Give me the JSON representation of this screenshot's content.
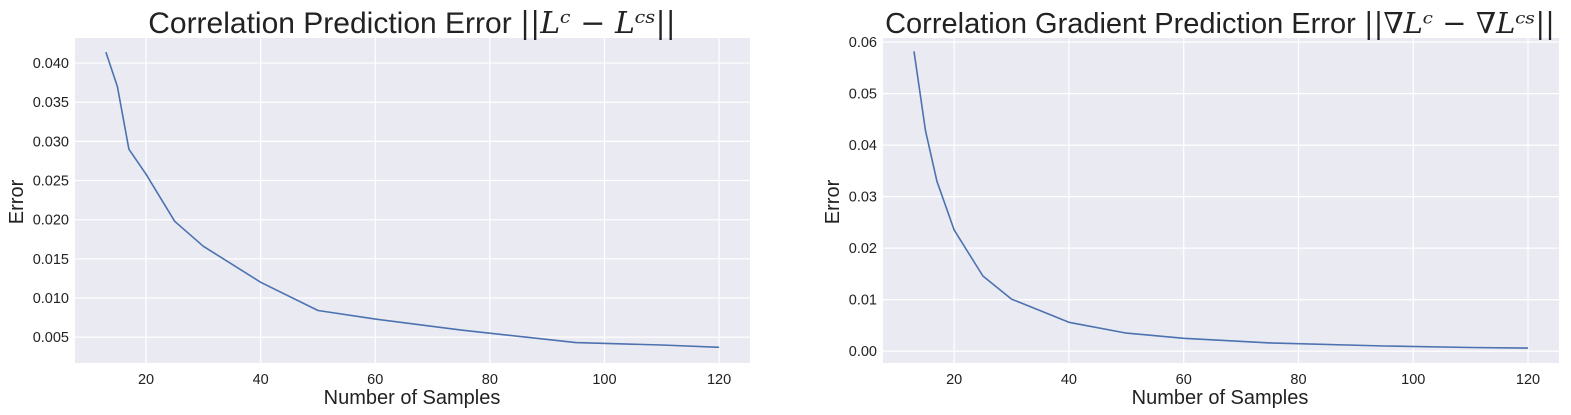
{
  "colors": {
    "background": "#eaeaf2",
    "grid": "#ffffff",
    "series": "#4c72b0"
  },
  "chart_data": [
    {
      "type": "line",
      "title": "Correlation Prediction Error ",
      "title_math": "||Lᶜ − Lᶜˢ||",
      "xlabel": "Number of Samples",
      "ylabel": "Error",
      "xlim": [
        7.6,
        125.4
      ],
      "ylim": [
        0.0017,
        0.0432
      ],
      "xticks": [
        20,
        40,
        60,
        80,
        100,
        120
      ],
      "xtick_labels": [
        "20",
        "40",
        "60",
        "80",
        "100",
        "120"
      ],
      "yticks": [
        0.005,
        0.01,
        0.015,
        0.02,
        0.025,
        0.03,
        0.035,
        0.04
      ],
      "ytick_labels": [
        "0.005",
        "0.010",
        "0.015",
        "0.020",
        "0.025",
        "0.030",
        "0.035",
        "0.040"
      ],
      "grid": true,
      "legend": false,
      "series": [
        {
          "x": [
            13,
            15,
            17,
            20,
            25,
            30,
            40,
            50,
            60,
            75,
            95,
            110,
            120
          ],
          "values": [
            0.0414,
            0.037,
            0.029,
            0.0258,
            0.0198,
            0.0166,
            0.012,
            0.0084,
            0.0073,
            0.0059,
            0.0043,
            0.004,
            0.0037
          ]
        }
      ]
    },
    {
      "type": "line",
      "title": "Correlation Gradient Prediction Error ",
      "title_math": "||∇Lᶜ − ∇Lᶜˢ||",
      "xlabel": "Number of Samples",
      "ylabel": "Error",
      "xlim": [
        7.6,
        125.4
      ],
      "ylim": [
        -0.0023,
        0.0608
      ],
      "xticks": [
        20,
        40,
        60,
        80,
        100,
        120
      ],
      "xtick_labels": [
        "20",
        "40",
        "60",
        "80",
        "100",
        "120"
      ],
      "yticks": [
        0.0,
        0.01,
        0.02,
        0.03,
        0.04,
        0.05,
        0.06
      ],
      "ytick_labels": [
        "0.00",
        "0.01",
        "0.02",
        "0.03",
        "0.04",
        "0.05",
        "0.06"
      ],
      "grid": true,
      "legend": false,
      "series": [
        {
          "x": [
            13,
            15,
            17,
            20,
            25,
            30,
            40,
            50,
            60,
            75,
            95,
            110,
            120
          ],
          "values": [
            0.0582,
            0.0428,
            0.033,
            0.0235,
            0.0146,
            0.0101,
            0.0056,
            0.0035,
            0.0025,
            0.0016,
            0.001,
            0.0007,
            0.0006
          ]
        }
      ]
    }
  ]
}
